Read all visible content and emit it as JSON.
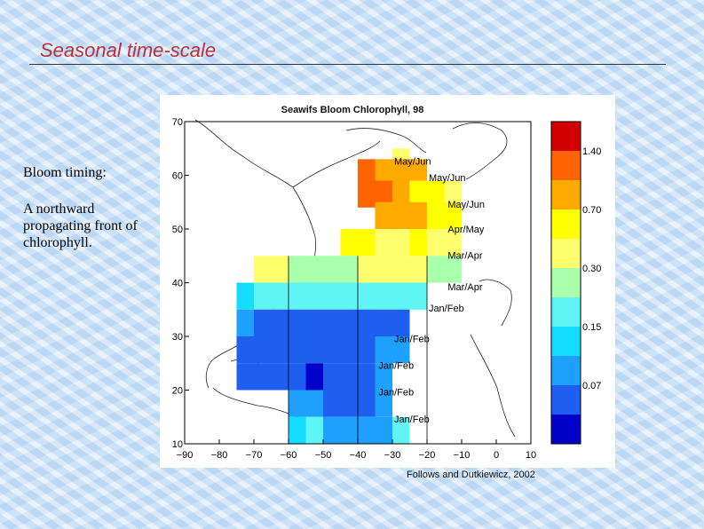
{
  "slide": {
    "title": "Seasonal time-scale",
    "bloom_heading": "Bloom timing:",
    "bloom_desc": "A northward propagating front of chlorophyll.",
    "credit": "Follows and Dutkiewicz, 2002"
  },
  "chart_data": {
    "type": "heatmap",
    "title": "Seawifs Bloom Chlorophyll, 98",
    "xlim": [
      -90,
      10
    ],
    "ylim": [
      10,
      70
    ],
    "x_ticks": [
      -90,
      -80,
      -70,
      -60,
      -50,
      -40,
      -30,
      -20,
      -10,
      0,
      10
    ],
    "y_ticks": [
      10,
      20,
      30,
      40,
      50,
      60,
      70
    ],
    "colorbar": {
      "colors": [
        "#0000c8",
        "#1e5ff0",
        "#1ea0ff",
        "#14dcff",
        "#5ff5f5",
        "#aaffaa",
        "#ffff6e",
        "#ffff00",
        "#ffaa00",
        "#ff6400",
        "#d20000"
      ],
      "labels": [
        {
          "value": "0.07",
          "index": 1
        },
        {
          "value": "0.15",
          "index": 3
        },
        {
          "value": "0.30",
          "index": 5
        },
        {
          "value": "0.70",
          "index": 7
        },
        {
          "value": "1.40",
          "index": 9
        }
      ]
    },
    "cells": [
      {
        "lon": -30,
        "lat": 60,
        "c": "#ffff6e"
      },
      {
        "lon": -40,
        "lat": 58,
        "c": "#ff6400"
      },
      {
        "lon": -35,
        "lat": 58,
        "c": "#ffaa00"
      },
      {
        "lon": -30,
        "lat": 58,
        "c": "#ffaa00"
      },
      {
        "lon": -25,
        "lat": 58,
        "c": "#ffaa00"
      },
      {
        "lon": -40,
        "lat": 54,
        "c": "#ff6400"
      },
      {
        "lon": -35,
        "lat": 54,
        "c": "#ff6400"
      },
      {
        "lon": -30,
        "lat": 54,
        "c": "#ffaa00"
      },
      {
        "lon": -25,
        "lat": 54,
        "c": "#ffff00"
      },
      {
        "lon": -20,
        "lat": 54,
        "c": "#ffff00"
      },
      {
        "lon": -15,
        "lat": 54,
        "c": "#ffff6e"
      },
      {
        "lon": -35,
        "lat": 50,
        "c": "#ffaa00"
      },
      {
        "lon": -30,
        "lat": 50,
        "c": "#ffaa00"
      },
      {
        "lon": -25,
        "lat": 50,
        "c": "#ffaa00"
      },
      {
        "lon": -20,
        "lat": 50,
        "c": "#ffff00"
      },
      {
        "lon": -15,
        "lat": 50,
        "c": "#ffff00"
      },
      {
        "lon": -45,
        "lat": 45,
        "c": "#ffff00"
      },
      {
        "lon": -40,
        "lat": 45,
        "c": "#ffff00"
      },
      {
        "lon": -35,
        "lat": 45,
        "c": "#ffff6e"
      },
      {
        "lon": -30,
        "lat": 45,
        "c": "#ffff6e"
      },
      {
        "lon": -25,
        "lat": 45,
        "c": "#ffff00"
      },
      {
        "lon": -20,
        "lat": 45,
        "c": "#ffff6e"
      },
      {
        "lon": -15,
        "lat": 45,
        "c": "#ffff6e"
      },
      {
        "lon": -70,
        "lat": 40,
        "c": "#ffff6e"
      },
      {
        "lon": -65,
        "lat": 40,
        "c": "#ffff6e"
      },
      {
        "lon": -60,
        "lat": 40,
        "c": "#aaffaa"
      },
      {
        "lon": -55,
        "lat": 40,
        "c": "#aaffaa"
      },
      {
        "lon": -50,
        "lat": 40,
        "c": "#aaffaa"
      },
      {
        "lon": -45,
        "lat": 40,
        "c": "#aaffaa"
      },
      {
        "lon": -40,
        "lat": 40,
        "c": "#ffff6e"
      },
      {
        "lon": -35,
        "lat": 40,
        "c": "#ffff6e"
      },
      {
        "lon": -30,
        "lat": 40,
        "c": "#ffff6e"
      },
      {
        "lon": -25,
        "lat": 40,
        "c": "#ffff6e"
      },
      {
        "lon": -20,
        "lat": 40,
        "c": "#aaffaa"
      },
      {
        "lon": -15,
        "lat": 40,
        "c": "#aaffaa"
      },
      {
        "lon": -75,
        "lat": 35,
        "c": "#14dcff"
      },
      {
        "lon": -70,
        "lat": 35,
        "c": "#5ff5f5"
      },
      {
        "lon": -65,
        "lat": 35,
        "c": "#5ff5f5"
      },
      {
        "lon": -60,
        "lat": 35,
        "c": "#5ff5f5"
      },
      {
        "lon": -55,
        "lat": 35,
        "c": "#5ff5f5"
      },
      {
        "lon": -50,
        "lat": 35,
        "c": "#5ff5f5"
      },
      {
        "lon": -45,
        "lat": 35,
        "c": "#5ff5f5"
      },
      {
        "lon": -40,
        "lat": 35,
        "c": "#5ff5f5"
      },
      {
        "lon": -35,
        "lat": 35,
        "c": "#5ff5f5"
      },
      {
        "lon": -30,
        "lat": 35,
        "c": "#5ff5f5"
      },
      {
        "lon": -25,
        "lat": 35,
        "c": "#5ff5f5"
      },
      {
        "lon": -75,
        "lat": 30,
        "c": "#1ea0ff"
      },
      {
        "lon": -70,
        "lat": 30,
        "c": "#1e5ff0"
      },
      {
        "lon": -65,
        "lat": 30,
        "c": "#1e5ff0"
      },
      {
        "lon": -60,
        "lat": 30,
        "c": "#1e5ff0"
      },
      {
        "lon": -55,
        "lat": 30,
        "c": "#1e5ff0"
      },
      {
        "lon": -50,
        "lat": 30,
        "c": "#1e5ff0"
      },
      {
        "lon": -45,
        "lat": 30,
        "c": "#1e5ff0"
      },
      {
        "lon": -40,
        "lat": 30,
        "c": "#1e5ff0"
      },
      {
        "lon": -35,
        "lat": 30,
        "c": "#1e5ff0"
      },
      {
        "lon": -30,
        "lat": 30,
        "c": "#1e5ff0"
      },
      {
        "lon": -75,
        "lat": 25,
        "c": "#1e5ff0"
      },
      {
        "lon": -70,
        "lat": 25,
        "c": "#1e5ff0"
      },
      {
        "lon": -65,
        "lat": 25,
        "c": "#1e5ff0"
      },
      {
        "lon": -60,
        "lat": 25,
        "c": "#1e5ff0"
      },
      {
        "lon": -55,
        "lat": 25,
        "c": "#1e5ff0"
      },
      {
        "lon": -50,
        "lat": 25,
        "c": "#1e5ff0"
      },
      {
        "lon": -45,
        "lat": 25,
        "c": "#1e5ff0"
      },
      {
        "lon": -40,
        "lat": 25,
        "c": "#1e5ff0"
      },
      {
        "lon": -35,
        "lat": 25,
        "c": "#1ea0ff"
      },
      {
        "lon": -30,
        "lat": 25,
        "c": "#1ea0ff"
      },
      {
        "lon": -75,
        "lat": 20,
        "c": "#1e5ff0"
      },
      {
        "lon": -70,
        "lat": 20,
        "c": "#1e5ff0"
      },
      {
        "lon": -65,
        "lat": 20,
        "c": "#1e5ff0"
      },
      {
        "lon": -60,
        "lat": 20,
        "c": "#1e5ff0"
      },
      {
        "lon": -55,
        "lat": 20,
        "c": "#0000c8"
      },
      {
        "lon": -50,
        "lat": 20,
        "c": "#1e5ff0"
      },
      {
        "lon": -45,
        "lat": 20,
        "c": "#1e5ff0"
      },
      {
        "lon": -40,
        "lat": 20,
        "c": "#1e5ff0"
      },
      {
        "lon": -35,
        "lat": 20,
        "c": "#1ea0ff"
      },
      {
        "lon": -60,
        "lat": 15,
        "c": "#1ea0ff"
      },
      {
        "lon": -55,
        "lat": 15,
        "c": "#1ea0ff"
      },
      {
        "lon": -50,
        "lat": 15,
        "c": "#1e5ff0"
      },
      {
        "lon": -45,
        "lat": 15,
        "c": "#1e5ff0"
      },
      {
        "lon": -40,
        "lat": 15,
        "c": "#1e5ff0"
      },
      {
        "lon": -35,
        "lat": 15,
        "c": "#1ea0ff"
      },
      {
        "lon": -60,
        "lat": 10,
        "c": "#14dcff"
      },
      {
        "lon": -55,
        "lat": 10,
        "c": "#5ff5f5"
      },
      {
        "lon": -50,
        "lat": 10,
        "c": "#1ea0ff"
      },
      {
        "lon": -45,
        "lat": 10,
        "c": "#1ea0ff"
      },
      {
        "lon": -40,
        "lat": 10,
        "c": "#1ea0ff"
      },
      {
        "lon": -35,
        "lat": 10,
        "c": "#1ea0ff"
      },
      {
        "lon": -30,
        "lat": 10,
        "c": "#5ff5f5"
      }
    ],
    "annotations": [
      {
        "text": "May/Jun",
        "lon": -29.5,
        "lat": 62
      },
      {
        "text": "May/Jun",
        "lon": -19.5,
        "lat": 58.9
      },
      {
        "text": "May/Jun",
        "lon": -14,
        "lat": 54
      },
      {
        "text": "Apr/May",
        "lon": -14,
        "lat": 49.3
      },
      {
        "text": "Mar/Apr",
        "lon": -14,
        "lat": 44.5
      },
      {
        "text": "Mar/Apr",
        "lon": -14,
        "lat": 38.6
      },
      {
        "text": "Jan/Feb",
        "lon": -19.5,
        "lat": 34.6
      },
      {
        "text": "Jan/Feb",
        "lon": -29.5,
        "lat": 28.9
      },
      {
        "text": "Jan/Feb",
        "lon": -34,
        "lat": 24
      },
      {
        "text": "Jan/Feb",
        "lon": -34,
        "lat": 19
      },
      {
        "text": "Jan/Feb",
        "lon": -29.5,
        "lat": 14
      }
    ]
  }
}
